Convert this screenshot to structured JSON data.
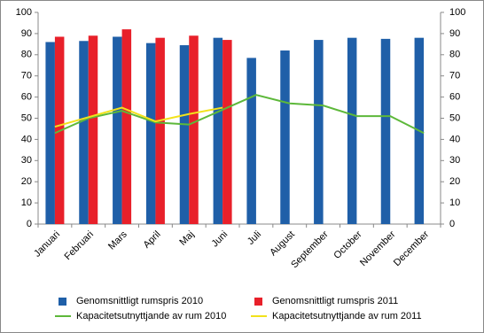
{
  "chart_data": {
    "type": "bar",
    "categories": [
      "Januari",
      "Februari",
      "Mars",
      "April",
      "Maj",
      "Juni",
      "Juli",
      "August",
      "September",
      "October",
      "November",
      "December"
    ],
    "series": [
      {
        "name": "Genomsnittligt rumspris 2010",
        "type": "bar",
        "color": "#1f5fa8",
        "values": [
          86,
          86.5,
          88.5,
          85.5,
          84.5,
          88,
          78.5,
          82,
          87,
          88,
          87.5,
          88
        ]
      },
      {
        "name": "Genomsnittligt rumspris 2011",
        "type": "bar",
        "color": "#e8202a",
        "values": [
          88.5,
          89,
          92,
          88,
          89,
          87,
          null,
          null,
          null,
          null,
          null,
          null
        ]
      },
      {
        "name": "Kapacitetsutnyttjande av rum 2010",
        "type": "line",
        "axis": "y2",
        "color": "#5db83a",
        "values": [
          43,
          50,
          53.5,
          48,
          47,
          54,
          61,
          57,
          56,
          51,
          51,
          43
        ]
      },
      {
        "name": "Kapacitetsutnyttjande av rum 2011",
        "type": "line",
        "axis": "y2",
        "color": "#f2e21b",
        "values": [
          46,
          50.5,
          55,
          48.5,
          52,
          55,
          null,
          null,
          null,
          null,
          null,
          null
        ]
      }
    ],
    "ylim": [
      0,
      100
    ],
    "yticks": [
      0,
      10,
      20,
      30,
      40,
      50,
      60,
      70,
      80,
      90,
      100
    ],
    "y2lim": [
      0,
      100
    ],
    "y2ticks": [
      0,
      10,
      20,
      30,
      40,
      50,
      60,
      70,
      80,
      90,
      100
    ],
    "legend": "bottom"
  }
}
